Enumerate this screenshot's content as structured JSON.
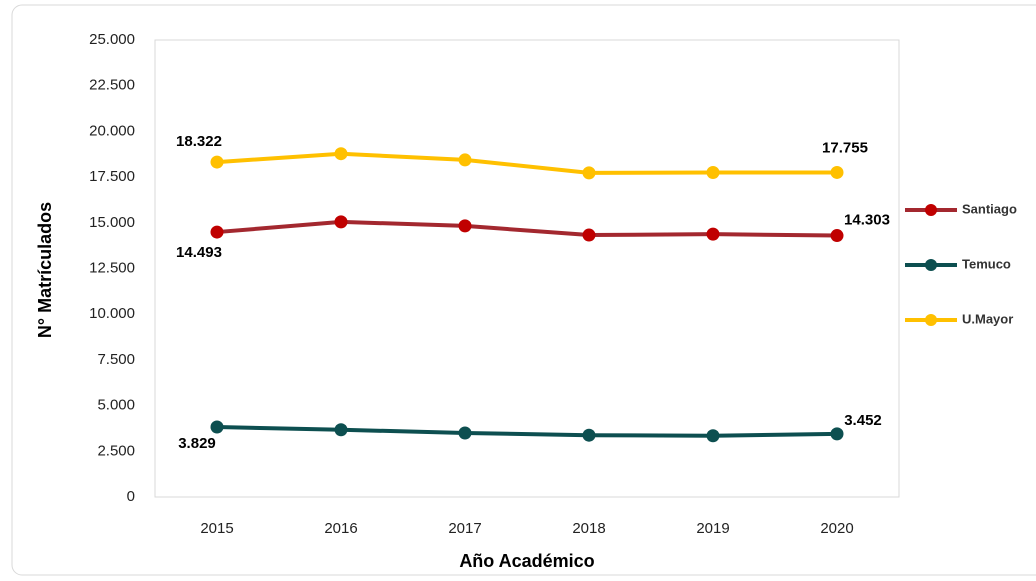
{
  "chart_data": {
    "type": "line",
    "xlabel": "Año Académico",
    "ylabel": "N° Matrículados",
    "categories": [
      "2015",
      "2016",
      "2017",
      "2018",
      "2019",
      "2020"
    ],
    "series": [
      {
        "name": "Santiago",
        "color": "#a3282f",
        "marker_color": "#c00000",
        "values": [
          14493,
          15050,
          14830,
          14330,
          14380,
          14303
        ],
        "value_labels": [
          "14.493",
          null,
          null,
          null,
          null,
          "14.303"
        ]
      },
      {
        "name": "Temuco",
        "color": "#0d4f50",
        "marker_color": "#0d4f50",
        "values": [
          3829,
          3680,
          3500,
          3380,
          3350,
          3452
        ],
        "value_labels": [
          "3.829",
          null,
          null,
          null,
          null,
          "3.452"
        ]
      },
      {
        "name": "U.Mayor",
        "color": "#ffc000",
        "marker_color": "#ffc000",
        "values": [
          18322,
          18780,
          18440,
          17730,
          17750,
          17755
        ],
        "value_labels": [
          "18.322",
          null,
          null,
          null,
          null,
          "17.755"
        ]
      }
    ],
    "ylim": [
      0,
      25000
    ],
    "yticks": [
      0,
      {
        "value": 2500,
        "label": "2.500"
      },
      {
        "value": 5000,
        "label": "5.000"
      },
      {
        "value": 7500,
        "label": "7.500"
      },
      {
        "value": 10000,
        "label": "10.000"
      },
      {
        "value": 12500,
        "label": "12.500"
      },
      {
        "value": 15000,
        "label": "15.000"
      },
      {
        "value": 17500,
        "label": "17.500"
      },
      {
        "value": 20000,
        "label": "20.000"
      },
      {
        "value": 22500,
        "label": "22.500"
      },
      {
        "value": 25000,
        "label": "25.000"
      }
    ],
    "grid": false,
    "legend": "right"
  }
}
